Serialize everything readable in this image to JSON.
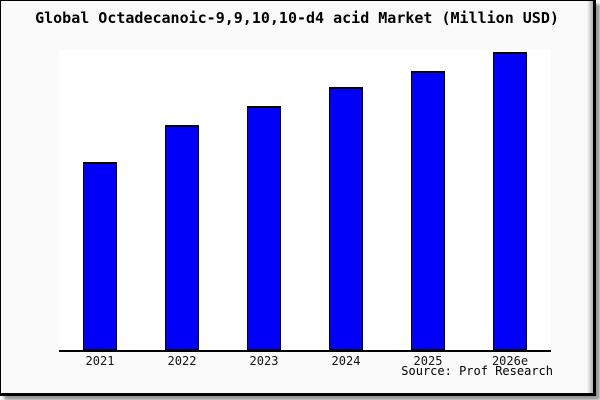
{
  "page": {
    "source_text": "Source: Prof Research"
  },
  "colors": {
    "bar_fill": "#0000fa",
    "bar_border": "#000000",
    "card_bg": "#fafafa",
    "plot_bg": "#ffffff",
    "axis": "#000000",
    "text": "#000000",
    "shadow": "#969696"
  },
  "chart_data": {
    "type": "bar",
    "title": "Global Octadecanoic-9,9,10,10-d4 acid Market (Million USD)",
    "categories": [
      "2021",
      "2022",
      "2023",
      "2024",
      "2025",
      "2026e"
    ],
    "values": [
      100,
      120,
      130,
      140,
      149,
      159
    ],
    "value_basis": "relative index, 2021 = 100; chart shows no y-axis tick labels or data labels",
    "xlabel": "",
    "ylabel": "",
    "ylim": [
      0,
      160
    ],
    "grid": false,
    "legend": false,
    "bar_count": 6
  }
}
